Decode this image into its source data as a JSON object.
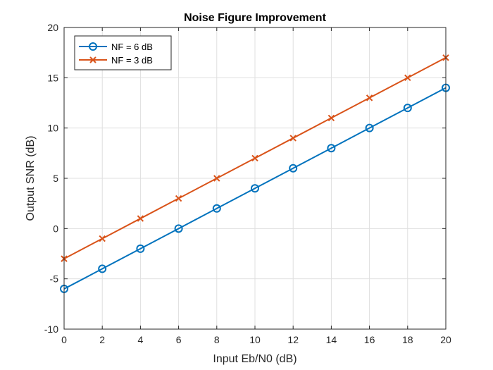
{
  "chart_data": {
    "type": "line",
    "title": "Noise Figure Improvement",
    "xlabel": "Input Eb/N0 (dB)",
    "ylabel": "Output SNR (dB)",
    "xlim": [
      0,
      20
    ],
    "ylim": [
      -10,
      20
    ],
    "xticks": [
      0,
      2,
      4,
      6,
      8,
      10,
      12,
      14,
      16,
      18,
      20
    ],
    "yticks": [
      -10,
      -5,
      0,
      5,
      10,
      15,
      20
    ],
    "grid": true,
    "legend_position": "top-left",
    "x": [
      0,
      2,
      4,
      6,
      8,
      10,
      12,
      14,
      16,
      18,
      20
    ],
    "series": [
      {
        "name": "NF = 6 dB",
        "color": "#0072BD",
        "marker": "circle",
        "values": [
          -6,
          -4,
          -2,
          0,
          2,
          4,
          6,
          8,
          10,
          12,
          14
        ]
      },
      {
        "name": "NF = 3 dB",
        "color": "#D95319",
        "marker": "x",
        "values": [
          -3,
          -1,
          1,
          3,
          5,
          7,
          9,
          11,
          13,
          15,
          17
        ]
      }
    ]
  }
}
